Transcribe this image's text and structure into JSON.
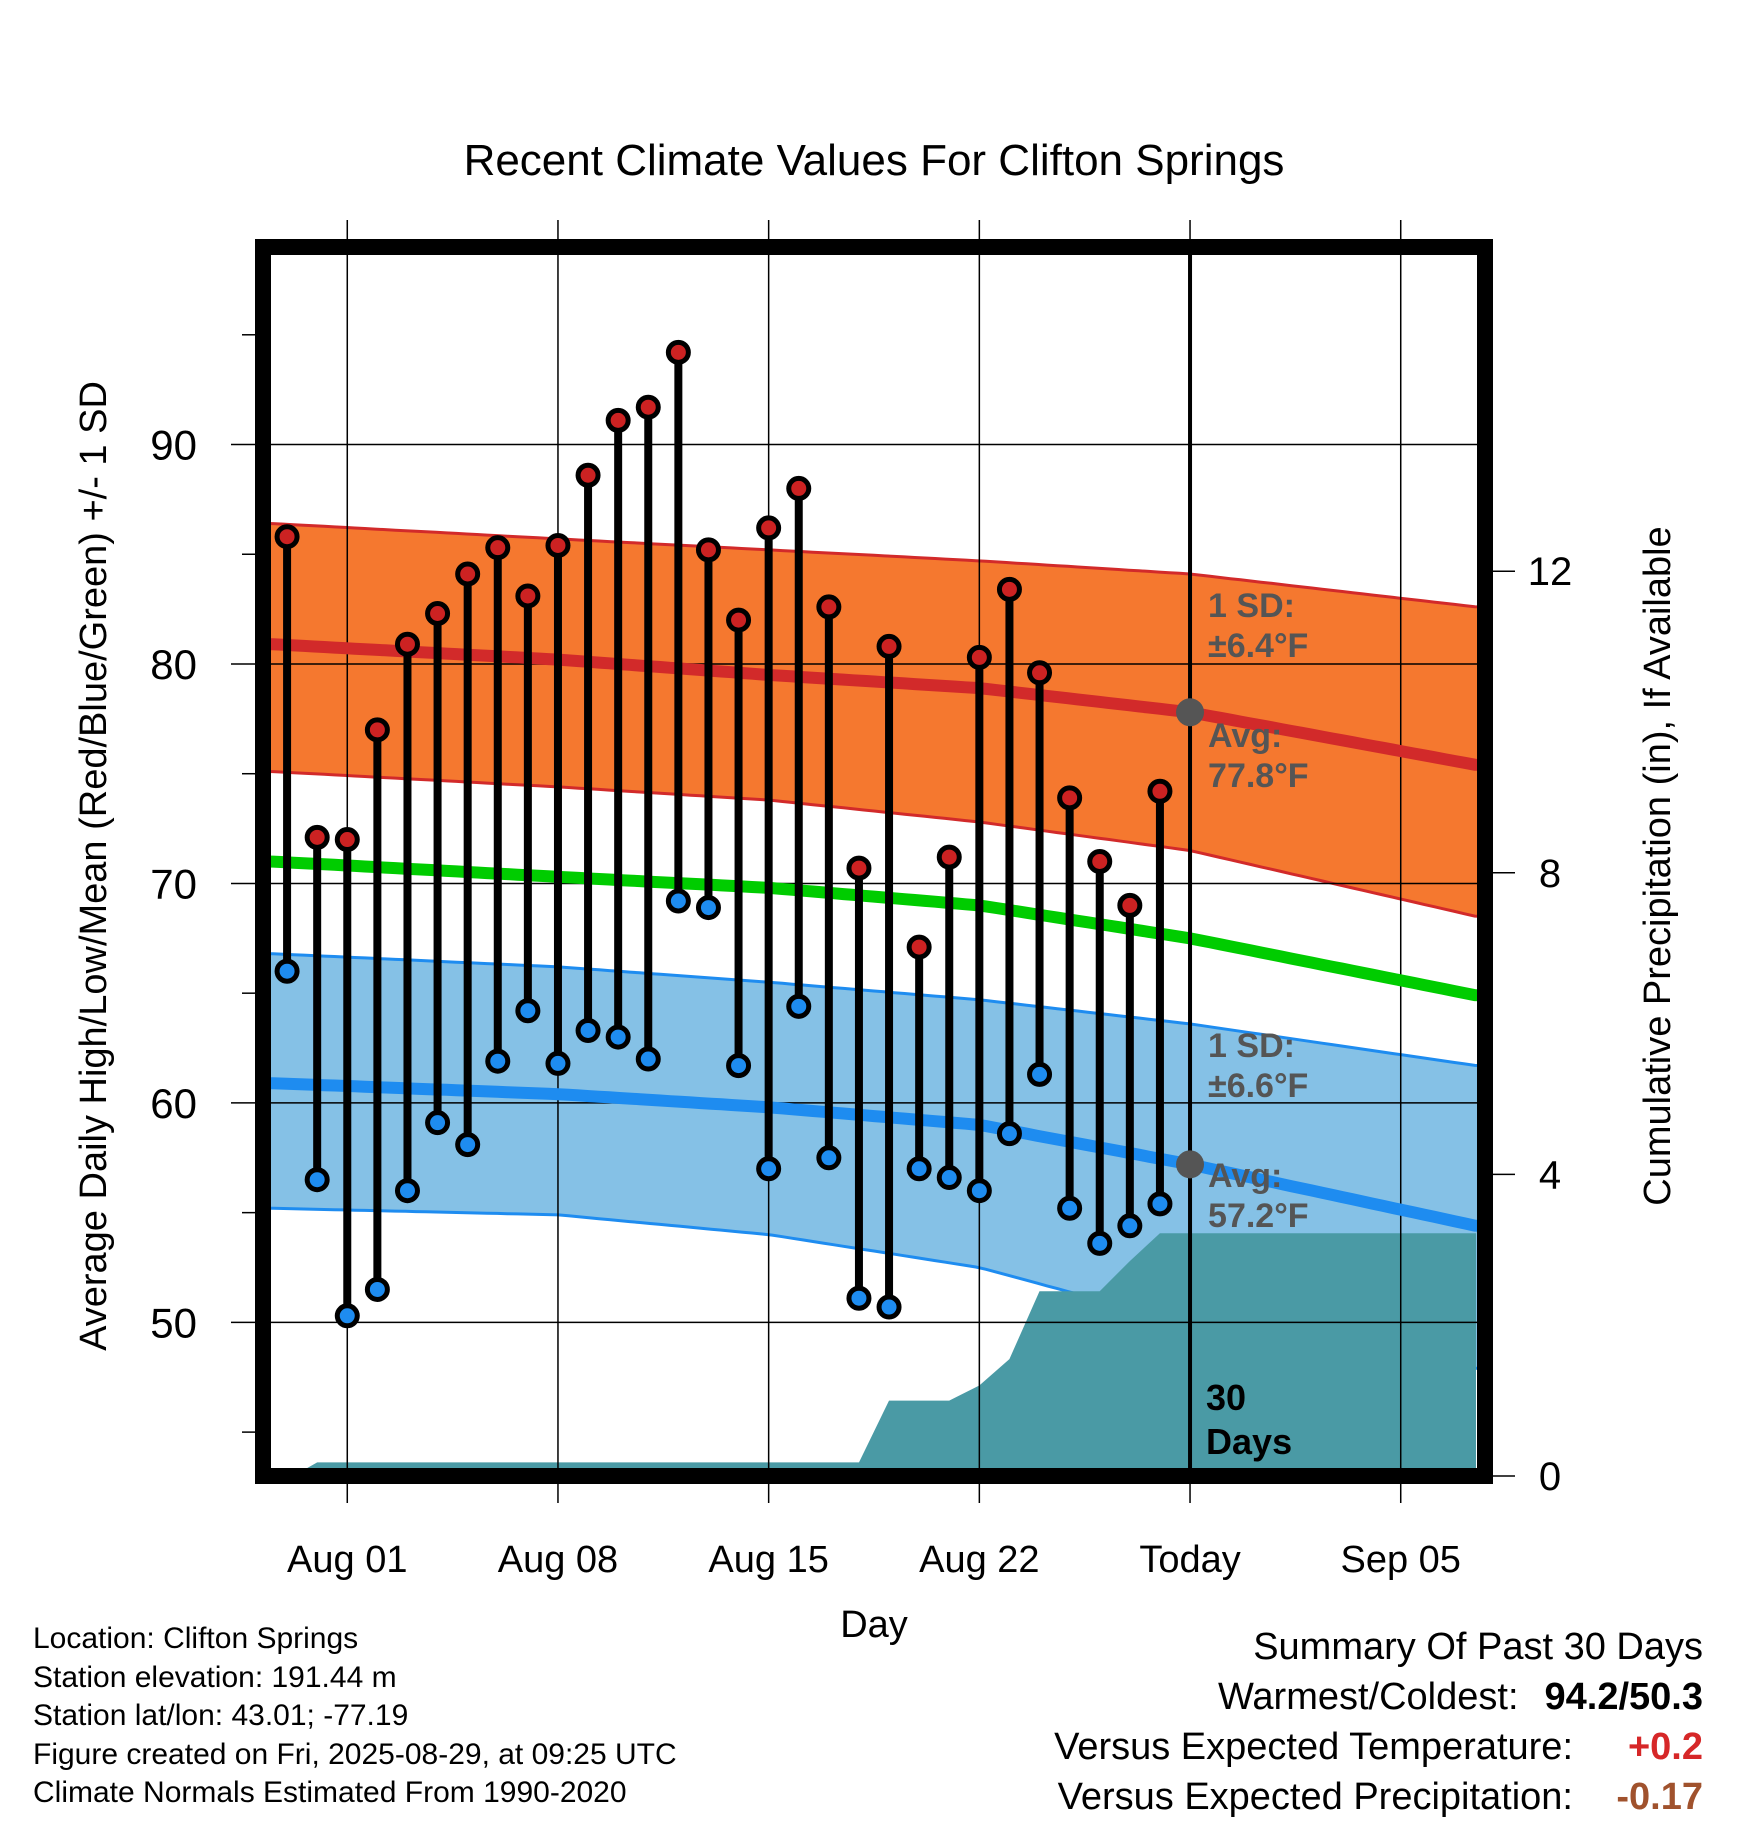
{
  "chart_data": {
    "type": "line",
    "title": "Recent Climate Values For Clifton Springs",
    "xlabel": "Day",
    "ylabel": "Average Daily High/Low/Mean (Red/Blue/Green) +/- 1 SD",
    "ylabel_right": "Cumulative Precipitation (in), If Available",
    "x_ticks": [
      "Aug 01",
      "Aug 08",
      "Aug 15",
      "Aug 22",
      "Today",
      "Sep 05"
    ],
    "x_tick_days": [
      1,
      8,
      15,
      22,
      29,
      36
    ],
    "xlim": [
      -1.8,
      38.8
    ],
    "ylim": [
      43,
      99
    ],
    "y_ticks": [
      50,
      60,
      70,
      80,
      90
    ],
    "y2lim": [
      0,
      16.3
    ],
    "y2_ticks": [
      0,
      4,
      8,
      12
    ],
    "grid": true,
    "today_day": 29,
    "today_label": "30\nDays",
    "days": [
      -1,
      0,
      1,
      2,
      3,
      4,
      5,
      6,
      7,
      8,
      9,
      10,
      11,
      12,
      13,
      14,
      15,
      16,
      17,
      18,
      19,
      20,
      21,
      22,
      23,
      24,
      25,
      26,
      27,
      28
    ],
    "daily_high": [
      85.8,
      72.1,
      72.0,
      77.0,
      80.9,
      82.3,
      84.1,
      85.3,
      83.1,
      85.4,
      88.6,
      91.1,
      91.7,
      94.2,
      85.2,
      82.0,
      86.2,
      88.0,
      82.6,
      70.7,
      80.8,
      67.1,
      71.2,
      80.3,
      83.4,
      79.6,
      73.9,
      71.0,
      69.0,
      74.2
    ],
    "daily_low": [
      66.0,
      56.5,
      50.3,
      51.5,
      56.0,
      59.1,
      58.1,
      61.9,
      64.2,
      61.8,
      63.3,
      63.0,
      62.0,
      69.2,
      68.9,
      61.7,
      57.0,
      64.4,
      57.5,
      51.1,
      50.7,
      57.0,
      56.6,
      56.0,
      58.6,
      61.3,
      55.2,
      53.6,
      54.4,
      55.4
    ],
    "normals_x": [
      -1.5,
      8,
      15,
      22,
      29,
      38.5
    ],
    "normal_high": [
      80.9,
      80.2,
      79.5,
      78.9,
      77.8,
      75.4
    ],
    "normal_high_sd_upper": [
      86.4,
      85.7,
      85.2,
      84.7,
      84.1,
      82.6
    ],
    "normal_high_sd_lower": [
      75.1,
      74.4,
      73.8,
      72.8,
      71.5,
      68.5
    ],
    "normal_mean": [
      71.0,
      70.3,
      69.8,
      69.0,
      67.5,
      64.9
    ],
    "normal_low": [
      60.9,
      60.4,
      59.8,
      59.0,
      57.2,
      54.4
    ],
    "normal_low_sd_upper": [
      66.8,
      66.2,
      65.5,
      64.7,
      63.6,
      61.7
    ],
    "normal_low_sd_lower": [
      55.2,
      54.9,
      54.0,
      52.5,
      49.9,
      47.9
    ],
    "precip_x": [
      -0.8,
      0,
      18,
      19,
      21,
      22,
      23,
      24,
      25,
      26,
      27,
      28,
      38.5
    ],
    "precip_cum": [
      0,
      0.18,
      0.18,
      1.0,
      1.0,
      1.2,
      1.55,
      2.45,
      2.45,
      2.45,
      2.85,
      3.22,
      3.22
    ],
    "annotations": {
      "high_sd_label": "1 SD:\n±6.4°F",
      "high_avg_label": "Avg:\n77.8°F",
      "low_sd_label": "1 SD:\n±6.6°F",
      "low_avg_label": "Avg:\n57.2°F"
    },
    "colors": {
      "high_band": "#f5782f",
      "high_edge": "#d22a2a",
      "high_line": "#d22a2a",
      "mean_line": "#00cc00",
      "low_band": "#85c1e6",
      "low_edge": "#1e8cf0",
      "low_line": "#1e8cf0",
      "precip_fill": "#4a9aa5",
      "high_dot": "#cc2222",
      "low_dot": "#1e8cf0",
      "annotation_text": "#555555"
    }
  },
  "footer": {
    "location": "Location: Clifton Springs",
    "elevation": "Station elevation: 191.44 m",
    "latlon": "Station lat/lon: 43.01; -77.19",
    "created": "Figure created on Fri, 2025-08-29, at 09:25 UTC",
    "normals": "Climate Normals Estimated From 1990-2020"
  },
  "summary": {
    "title": "Summary Of Past 30 Days",
    "warm_cold_label": "Warmest/Coldest:",
    "warm_cold_value": "94.2/50.3",
    "temp_label": "Versus Expected Temperature:",
    "temp_value": "+0.2",
    "precip_label": "Versus Expected Precipitation:",
    "precip_value": "-0.17"
  }
}
